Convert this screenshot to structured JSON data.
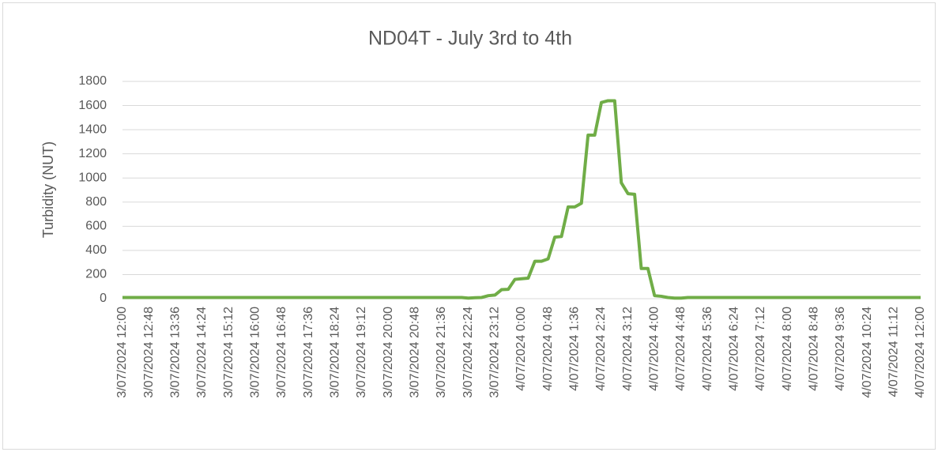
{
  "chart_data": {
    "type": "line",
    "title": "ND04T - July 3rd to 4th",
    "y_label": "Turbidity (NUT)",
    "categories": [
      "3/07/2024 12:00",
      null,
      null,
      null,
      "3/07/2024 12:48",
      null,
      null,
      null,
      "3/07/2024 13:36",
      null,
      null,
      null,
      "3/07/2024 14:24",
      null,
      null,
      null,
      "3/07/2024 15:12",
      null,
      null,
      null,
      "3/07/2024 16:00",
      null,
      null,
      null,
      "3/07/2024 16:48",
      null,
      null,
      null,
      "3/07/2024 17:36",
      null,
      null,
      null,
      "3/07/2024 18:24",
      null,
      null,
      null,
      "3/07/2024 19:12",
      null,
      null,
      null,
      "3/07/2024 20:00",
      null,
      null,
      null,
      "3/07/2024 20:48",
      null,
      null,
      null,
      "3/07/2024 21:36",
      null,
      null,
      null,
      "3/07/2024 22:24",
      null,
      null,
      null,
      "3/07/2024 23:12",
      null,
      null,
      null,
      "4/07/2024 0:00",
      null,
      null,
      null,
      "4/07/2024 0:48",
      null,
      null,
      null,
      "4/07/2024 1:36",
      null,
      null,
      null,
      "4/07/2024 2:24",
      null,
      null,
      null,
      "4/07/2024 3:12",
      null,
      null,
      null,
      "4/07/2024 4:00",
      null,
      null,
      null,
      "4/07/2024 4:48",
      null,
      null,
      null,
      "4/07/2024 5:36",
      null,
      null,
      null,
      "4/07/2024 6:24",
      null,
      null,
      null,
      "4/07/2024 7:12",
      null,
      null,
      null,
      "4/07/2024 8:00",
      null,
      null,
      null,
      "4/07/2024 8:48",
      null,
      null,
      null,
      "4/07/2024 9:36",
      null,
      null,
      null,
      "4/07/2024 10:24",
      null,
      null,
      null,
      "4/07/2024 11:12",
      null,
      null,
      null,
      "4/07/2024 12:00"
    ],
    "series": [
      {
        "name": "Turbidity",
        "color": "#70ad47",
        "values": [
          10,
          10,
          10,
          10,
          10,
          10,
          10,
          10,
          10,
          10,
          10,
          10,
          10,
          10,
          10,
          10,
          10,
          10,
          10,
          10,
          10,
          10,
          10,
          10,
          10,
          10,
          10,
          10,
          10,
          10,
          10,
          10,
          10,
          10,
          10,
          10,
          10,
          10,
          10,
          10,
          10,
          10,
          10,
          10,
          10,
          10,
          10,
          10,
          10,
          10,
          10,
          10,
          5,
          8,
          10,
          25,
          30,
          75,
          78,
          160,
          165,
          170,
          310,
          310,
          330,
          510,
          515,
          760,
          760,
          790,
          1355,
          1355,
          1625,
          1640,
          1640,
          960,
          870,
          865,
          250,
          250,
          25,
          20,
          10,
          5,
          5,
          10,
          10,
          10,
          10,
          10,
          10,
          10,
          10,
          10,
          10,
          10,
          10,
          10,
          10,
          10,
          10,
          10,
          10,
          10,
          10,
          10,
          10,
          10,
          10,
          10,
          10,
          10,
          10,
          10,
          10,
          10,
          10,
          10,
          10,
          10,
          10
        ]
      }
    ],
    "ylim": [
      0,
      1800
    ],
    "yticks": [
      0,
      200,
      400,
      600,
      800,
      1000,
      1200,
      1400,
      1600,
      1800
    ],
    "grid": true
  }
}
